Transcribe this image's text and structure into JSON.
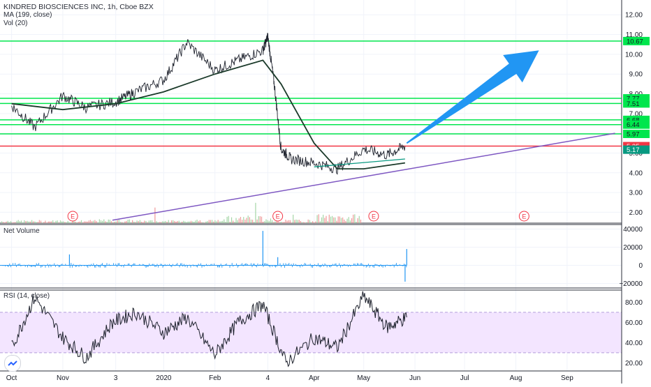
{
  "chart_data": [
    {
      "type": "line",
      "title": "KINDRED BIOSCIENCES INC, 1h, Cboe BZX",
      "legend": [
        "MA (199, close)",
        "Vol (20)"
      ],
      "ylim": [
        1.45,
        12.75
      ],
      "y_ticks": [
        "2.00",
        "3.00",
        "4.00",
        "5.00",
        "6.00",
        "7.00",
        "8.00",
        "9.00",
        "10.00",
        "11.00",
        "12.00"
      ],
      "price_labels": [
        {
          "text": "10.67",
          "value": 10.67,
          "color": "#00e64d"
        },
        {
          "text": "7.77",
          "value": 7.77,
          "color": "#00e64d"
        },
        {
          "text": "7.51",
          "value": 7.51,
          "color": "#00e64d"
        },
        {
          "text": "6.68",
          "value": 6.68,
          "color": "#00e64d"
        },
        {
          "text": "6.44",
          "value": 6.44,
          "color": "#00e64d"
        },
        {
          "text": "5.97",
          "value": 5.97,
          "color": "#00e64d"
        },
        {
          "text": "5.35",
          "value": 5.35,
          "color": "#f23645"
        },
        {
          "text": "5.17",
          "value": 5.17,
          "color": "#089981"
        }
      ],
      "horizontal_lines": [
        {
          "value": 10.67,
          "color": "#00e64d"
        },
        {
          "value": 7.77,
          "color": "#00e64d"
        },
        {
          "value": 7.51,
          "color": "#00e64d"
        },
        {
          "value": 6.68,
          "color": "#00e64d"
        },
        {
          "value": 6.44,
          "color": "#00e64d"
        },
        {
          "value": 5.97,
          "color": "#00e64d"
        },
        {
          "value": 5.35,
          "color": "#f23645"
        }
      ],
      "price_series": {
        "x": [
          "Oct 1",
          "Oct 15",
          "Nov 1",
          "Nov 15",
          "Dec 3",
          "Dec 15",
          "Jan 1",
          "Jan 15",
          "Feb 1",
          "Feb 15",
          "Mar 1",
          "Mar 4",
          "Mar 8",
          "Mar 12",
          "Mar 18",
          "Apr 1",
          "Apr 15",
          "May 1",
          "May 15",
          "May 26"
        ],
        "values": [
          7.4,
          6.3,
          7.9,
          7.3,
          7.6,
          8.1,
          8.7,
          10.6,
          9.2,
          9.7,
          10.2,
          10.9,
          8.4,
          5.2,
          4.7,
          4.5,
          4.2,
          5.2,
          4.9,
          5.35
        ]
      },
      "ma_series": {
        "x": [
          "Oct 1",
          "Nov 1",
          "Dec 3",
          "Jan 1",
          "Feb 1",
          "Mar 1",
          "Mar 12",
          "Apr 1",
          "Apr 15",
          "May 1",
          "May 26"
        ],
        "values": [
          7.5,
          7.2,
          7.5,
          8.1,
          9.0,
          9.7,
          8.5,
          5.5,
          4.2,
          4.2,
          4.5
        ]
      },
      "trend_line": {
        "x": [
          "Dec 1",
          "Sep 30"
        ],
        "values": [
          1.6,
          6.0
        ],
        "color": "#7e57c2"
      },
      "arrow": {
        "from": {
          "x": "May 27",
          "value": 5.5
        },
        "to": {
          "x": "Aug 15",
          "value": 10.2
        },
        "color": "#2196f3"
      },
      "earnings_markers": [
        "Nov 7",
        "Mar 10",
        "May 7",
        "Aug 6"
      ],
      "earnings_label": "E",
      "volume": {
        "x": [
          "Oct",
          "Nov",
          "Dec",
          "Jan",
          "Feb",
          "Mar",
          "Apr",
          "May"
        ],
        "values": [
          1,
          1,
          2,
          1,
          2,
          8,
          2,
          9
        ]
      }
    },
    {
      "type": "bar",
      "title": "Net Volume",
      "ylim": [
        -25000,
        45000
      ],
      "y_ticks": [
        "40000",
        "20000",
        "0",
        "−20000"
      ],
      "spikes": [
        {
          "x": "Nov 5",
          "value": 12000
        },
        {
          "x": "Mar 1",
          "value": 38000
        },
        {
          "x": "Mar 10",
          "value": 9000
        },
        {
          "x": "May 26",
          "value": -18000
        },
        {
          "x": "May 27",
          "value": 18000
        }
      ]
    },
    {
      "type": "line",
      "title": "RSI (14, close)",
      "ylim": [
        12,
        92
      ],
      "y_ticks": [
        "80.00",
        "60.00",
        "40.00",
        "20.00"
      ],
      "band": [
        30,
        70
      ],
      "x": [
        "Oct 1",
        "Oct 15",
        "Nov 1",
        "Nov 15",
        "Dec 1",
        "Dec 15",
        "Jan 1",
        "Jan 15",
        "Feb 1",
        "Feb 15",
        "Mar 1",
        "Mar 15",
        "Apr 1",
        "Apr 15",
        "May 1",
        "May 15",
        "May 27"
      ],
      "values": [
        35,
        85,
        45,
        25,
        60,
        70,
        50,
        65,
        28,
        60,
        78,
        20,
        45,
        35,
        86,
        55,
        65
      ]
    }
  ],
  "x_axis_labels": [
    "Oct",
    "Nov",
    "3",
    "2020",
    "Feb",
    "4",
    "Apr",
    "May",
    "Jun",
    "Jul",
    "Aug",
    "Sep"
  ],
  "x_axis_dates": [
    "Oct 1",
    "Nov 1",
    "Dec 3",
    "Jan 1",
    "Feb 1",
    "Mar 4",
    "Apr 1",
    "May 1",
    "Jun 1",
    "Jul 1",
    "Aug 1",
    "Sep 1"
  ],
  "colors": {
    "price": "#1e222d",
    "ma": "#1b3a2a",
    "ma_green": "#089981",
    "net_volume": "#2196f3",
    "rsi": "#1e222d",
    "rsi_band": "#f3e5ff",
    "grid": "#f0f3fa"
  }
}
